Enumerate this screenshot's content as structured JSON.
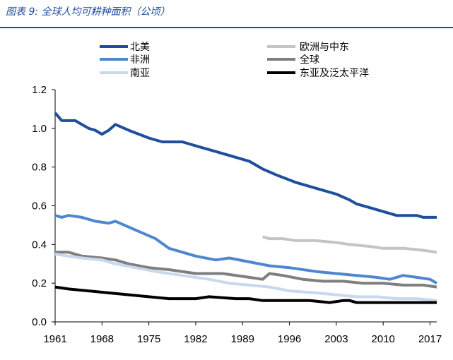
{
  "header": {
    "figure_title": "图表 9:  全球人均可耕种面积（公顷）"
  },
  "chart_data": {
    "type": "line",
    "title": "图表 9:  全球人均可耕种面积（公顷）",
    "ylabel": "",
    "xlabel": "",
    "ylim": [
      0,
      1.2
    ],
    "xlim": [
      1961,
      2018
    ],
    "y_ticks": [
      "0.0",
      "0.2",
      "0.4",
      "0.6",
      "0.8",
      "1.0",
      "1.2"
    ],
    "x_ticks": [
      "1961",
      "1968",
      "1975",
      "1982",
      "1989",
      "1996",
      "2003",
      "2010",
      "2017"
    ],
    "grid": false,
    "legend_position": "top",
    "series": [
      {
        "name": "北美",
        "color": "#1f4e9c",
        "width": 4,
        "x": [
          1961,
          1962,
          1964,
          1966,
          1967,
          1968,
          1969,
          1970,
          1972,
          1975,
          1977,
          1980,
          1983,
          1985,
          1990,
          1992,
          1994,
          1997,
          2000,
          2003,
          2005,
          2006,
          2008,
          2010,
          2012,
          2014,
          2015,
          2016,
          2018
        ],
        "y": [
          1.08,
          1.04,
          1.04,
          1.0,
          0.99,
          0.97,
          0.99,
          1.02,
          0.99,
          0.95,
          0.93,
          0.93,
          0.9,
          0.88,
          0.83,
          0.79,
          0.76,
          0.72,
          0.69,
          0.66,
          0.63,
          0.61,
          0.59,
          0.57,
          0.55,
          0.55,
          0.55,
          0.54,
          0.54
        ]
      },
      {
        "name": "欧洲与中东",
        "color": "#c4c4c4",
        "width": 4,
        "x": [
          1992,
          1993,
          1995,
          1997,
          2000,
          2003,
          2005,
          2008,
          2010,
          2013,
          2016,
          2018
        ],
        "y": [
          0.44,
          0.43,
          0.43,
          0.42,
          0.42,
          0.41,
          0.4,
          0.39,
          0.38,
          0.38,
          0.37,
          0.36
        ]
      },
      {
        "name": "非洲",
        "color": "#4f86d0",
        "width": 4,
        "x": [
          1961,
          1962,
          1963,
          1965,
          1967,
          1969,
          1970,
          1972,
          1974,
          1976,
          1978,
          1980,
          1982,
          1985,
          1987,
          1990,
          1993,
          1996,
          2000,
          2003,
          2006,
          2009,
          2011,
          2013,
          2015,
          2017,
          2018
        ],
        "y": [
          0.55,
          0.54,
          0.55,
          0.54,
          0.52,
          0.51,
          0.52,
          0.49,
          0.46,
          0.43,
          0.38,
          0.36,
          0.34,
          0.32,
          0.33,
          0.31,
          0.29,
          0.28,
          0.26,
          0.25,
          0.24,
          0.23,
          0.22,
          0.24,
          0.23,
          0.22,
          0.2
        ]
      },
      {
        "name": "全球",
        "color": "#7f7f7f",
        "width": 4,
        "x": [
          1961,
          1963,
          1965,
          1968,
          1970,
          1972,
          1975,
          1978,
          1982,
          1986,
          1990,
          1992,
          1993,
          1995,
          1998,
          2001,
          2004,
          2007,
          2010,
          2013,
          2016,
          2018
        ],
        "y": [
          0.36,
          0.36,
          0.34,
          0.33,
          0.32,
          0.3,
          0.28,
          0.27,
          0.25,
          0.25,
          0.23,
          0.22,
          0.25,
          0.24,
          0.22,
          0.21,
          0.21,
          0.2,
          0.2,
          0.19,
          0.19,
          0.18
        ]
      },
      {
        "name": "南亚",
        "color": "#c7d9ee",
        "width": 4,
        "x": [
          1961,
          1963,
          1965,
          1968,
          1970,
          1973,
          1976,
          1980,
          1984,
          1987,
          1990,
          1993,
          1996,
          2000,
          2003,
          2006,
          2009,
          2012,
          2015,
          2018
        ],
        "y": [
          0.35,
          0.34,
          0.33,
          0.32,
          0.3,
          0.28,
          0.26,
          0.24,
          0.22,
          0.2,
          0.19,
          0.18,
          0.16,
          0.15,
          0.14,
          0.13,
          0.13,
          0.12,
          0.12,
          0.11
        ]
      },
      {
        "name": "东亚及泛太平洋",
        "color": "#000000",
        "width": 4,
        "x": [
          1961,
          1963,
          1966,
          1969,
          1972,
          1975,
          1978,
          1982,
          1984,
          1988,
          1990,
          1992,
          1995,
          1999,
          2002,
          2004,
          2005,
          2006,
          2008,
          2012,
          2015,
          2018
        ],
        "y": [
          0.18,
          0.17,
          0.16,
          0.15,
          0.14,
          0.13,
          0.12,
          0.12,
          0.13,
          0.12,
          0.12,
          0.11,
          0.11,
          0.11,
          0.1,
          0.11,
          0.11,
          0.1,
          0.1,
          0.1,
          0.1,
          0.1
        ]
      }
    ],
    "legend_order": [
      "北美",
      "欧洲与中东",
      "非洲",
      "全球",
      "南亚",
      "东亚及泛太平洋"
    ]
  }
}
